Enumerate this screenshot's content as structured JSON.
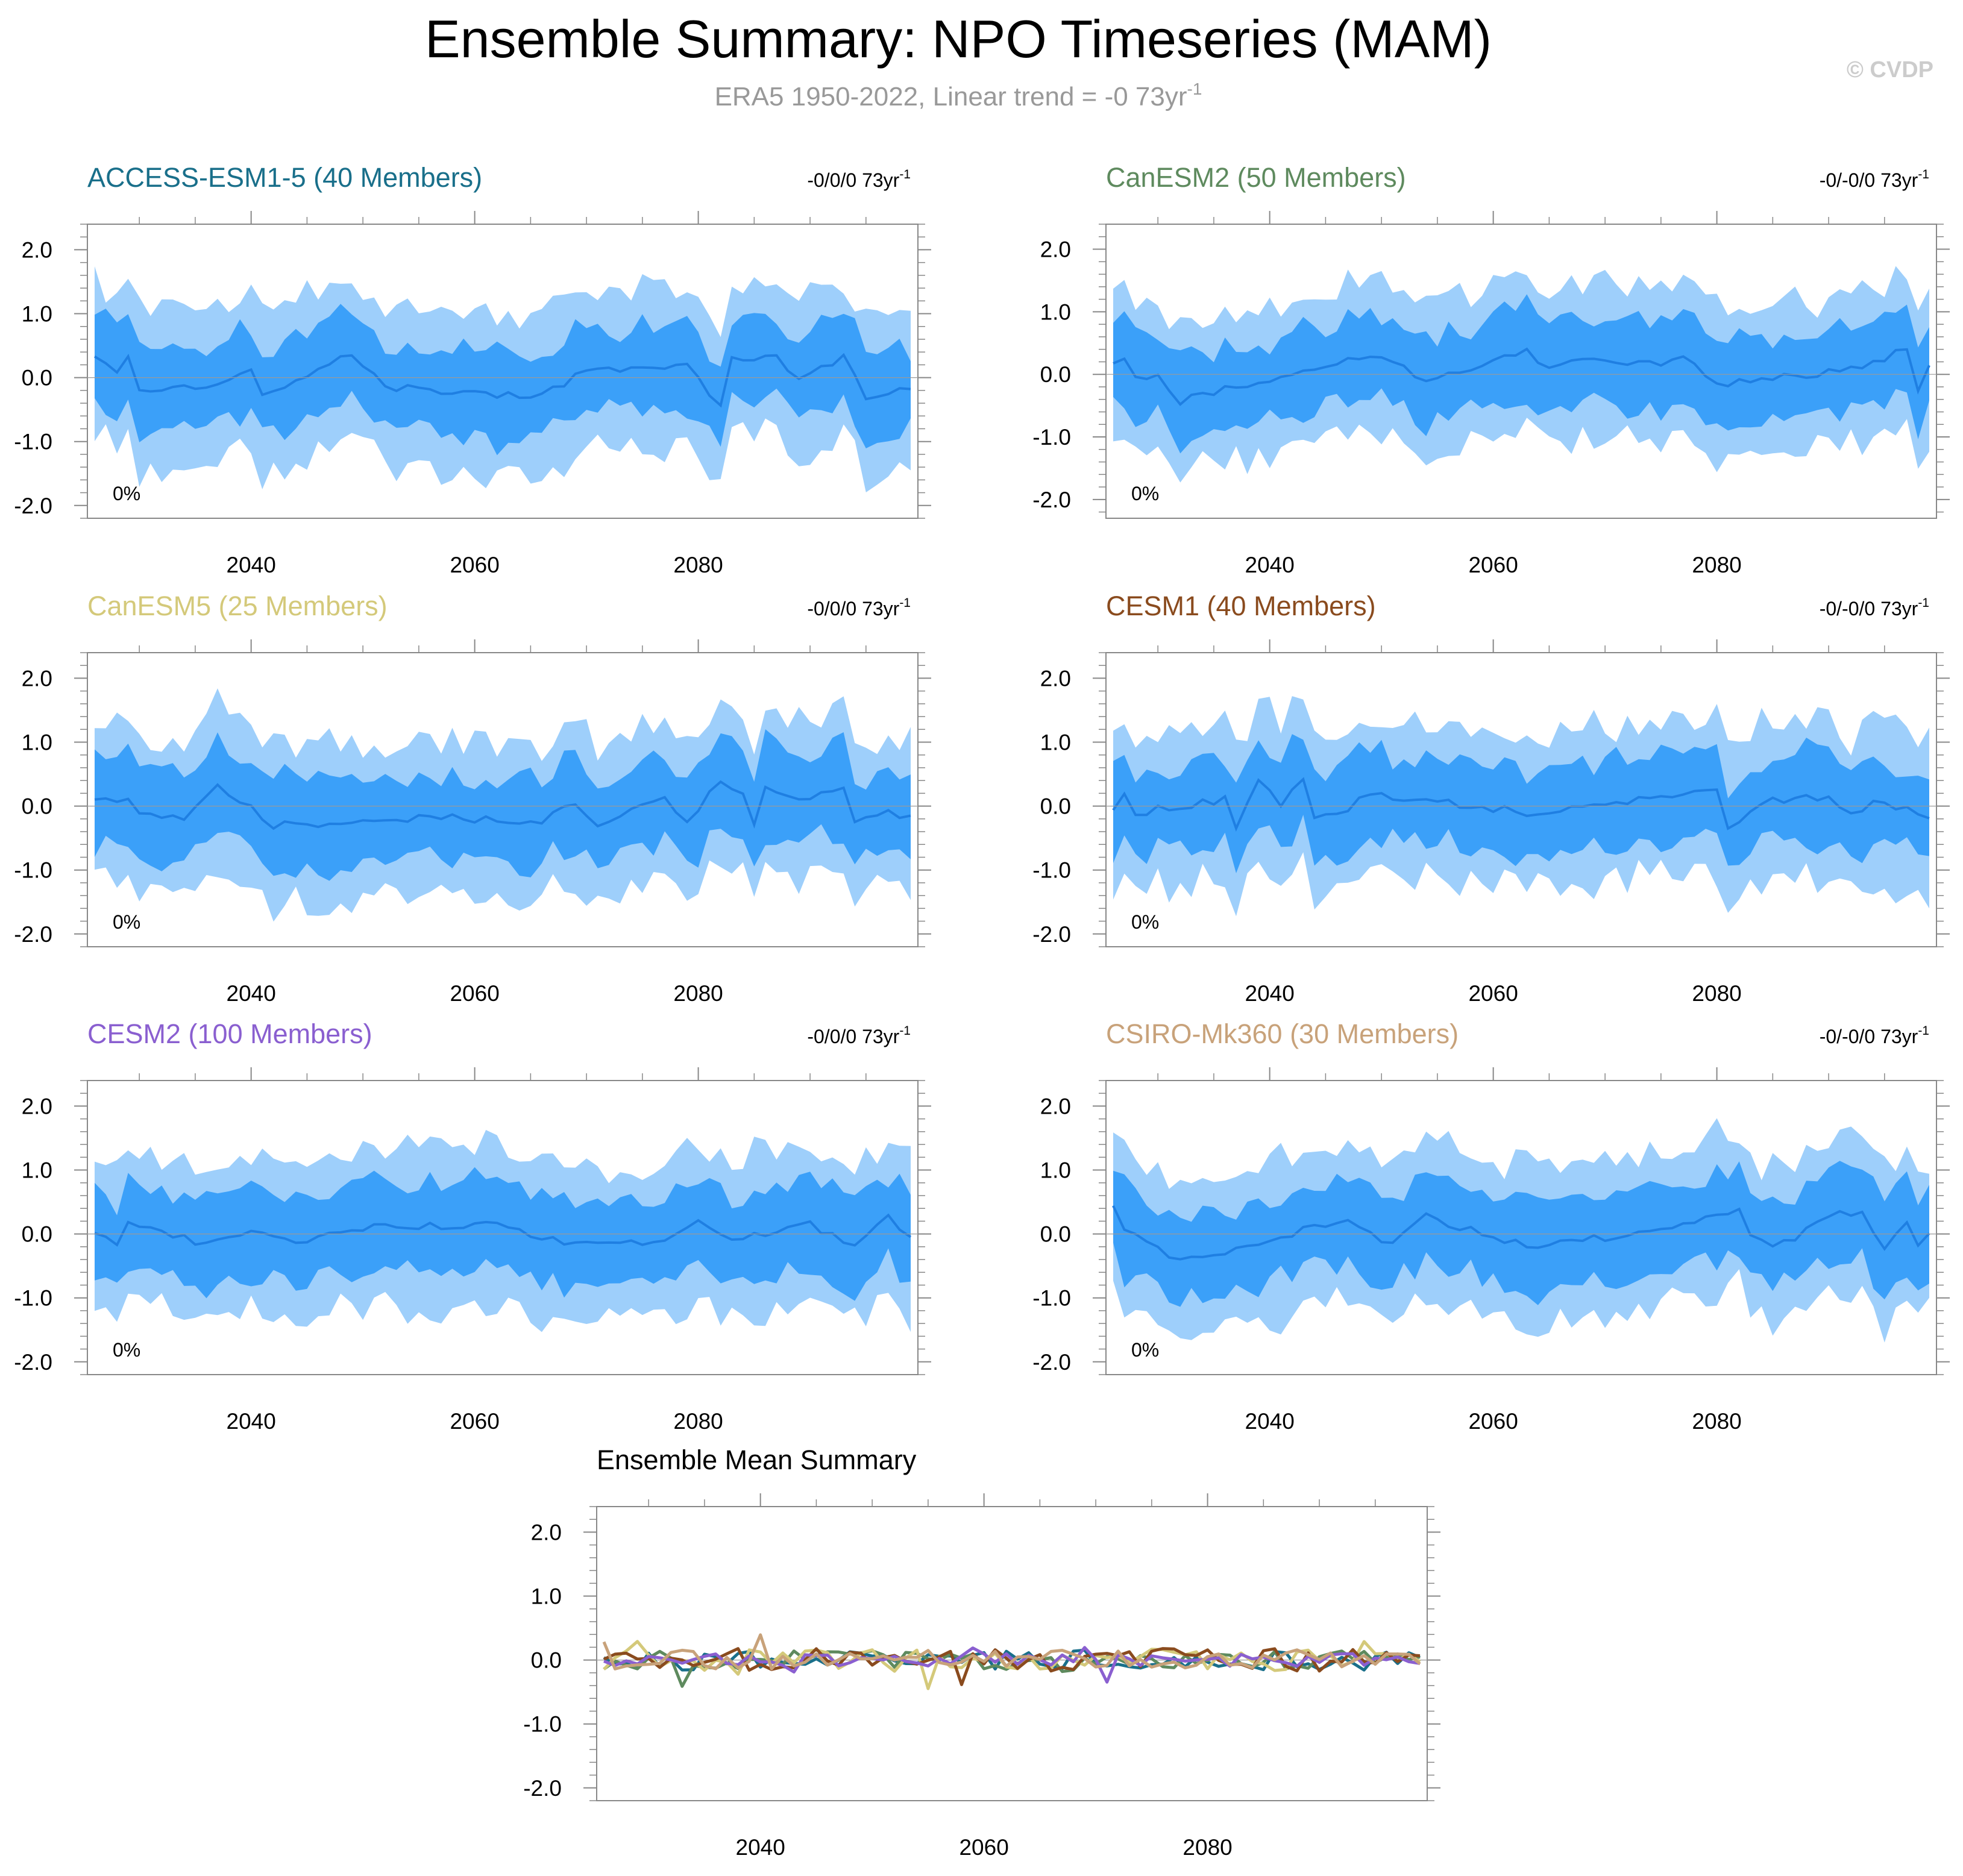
{
  "title": "Ensemble Summary: NPO Timeseries (MAM)",
  "subtitle": {
    "text": "ERA5 1950-2022, Linear trend = -0 73yr",
    "superscript": "-1"
  },
  "watermark": "© CVDP",
  "colors": {
    "outer_band": "#9ecffb",
    "inner_band": "#3ba0f9",
    "mean_line": "#1f7fe2",
    "subtitle": "#999999",
    "watermark": "#cccccc"
  },
  "chart_data": [
    {
      "type": "area",
      "title": "ACCESS-ESM1-5 (40 Members)",
      "title_color": "#196f8a",
      "trend_label": "-0/0/0 73yr",
      "trend_superscript": "-1",
      "percent_label": "0%",
      "xlim": [
        2026,
        2099
      ],
      "ylim": [
        -2.2,
        2.4
      ],
      "xticks": [
        2040,
        2060,
        2080
      ],
      "xtick_labels": [
        "2040",
        "2060",
        "2080"
      ],
      "yticks": [
        2.0,
        1.0,
        0.0,
        -1.0,
        -2.0
      ],
      "ytick_labels": [
        "2.0",
        "1.0",
        "0.0",
        "-1.0",
        "-2.0"
      ],
      "seed": 11,
      "mean_anchors": [
        [
          2026,
          0.28
        ],
        [
          2028,
          0.1
        ],
        [
          2029,
          0.32
        ],
        [
          2030,
          -0.22
        ],
        [
          2037,
          -0.12
        ],
        [
          2040,
          0.15
        ],
        [
          2041,
          -0.32
        ],
        [
          2045,
          0.05
        ],
        [
          2049,
          0.38
        ],
        [
          2052,
          -0.15
        ],
        [
          2066,
          -0.3
        ],
        [
          2070,
          0.12
        ],
        [
          2079,
          0.18
        ],
        [
          2082,
          -0.48
        ],
        [
          2083,
          0.32
        ],
        [
          2087,
          0.3
        ],
        [
          2089,
          -0.05
        ],
        [
          2093,
          0.35
        ],
        [
          2095,
          -0.28
        ],
        [
          2099,
          -0.18
        ]
      ]
    },
    {
      "type": "area",
      "title": "CanESM2 (50 Members)",
      "title_color": "#5e8a5e",
      "trend_label": "-0/-0/0 73yr",
      "trend_superscript": "-1",
      "percent_label": "0%",
      "xlim": [
        2026,
        2099
      ],
      "ylim": [
        -2.3,
        2.4
      ],
      "xticks": [
        2040,
        2060,
        2080
      ],
      "xtick_labels": [
        "2040",
        "2060",
        "2080"
      ],
      "yticks": [
        2.0,
        1.0,
        0.0,
        -1.0,
        -2.0
      ],
      "ytick_labels": [
        "2.0",
        "1.0",
        "0.0",
        "-1.0",
        "-2.0"
      ],
      "seed": 23,
      "mean_anchors": [
        [
          2026,
          0.15
        ],
        [
          2027,
          0.28
        ],
        [
          2028,
          -0.05
        ],
        [
          2030,
          0.0
        ],
        [
          2032,
          -0.42
        ],
        [
          2049,
          0.3
        ],
        [
          2052,
          0.15
        ],
        [
          2054,
          -0.12
        ],
        [
          2063,
          0.4
        ],
        [
          2065,
          0.08
        ],
        [
          2067,
          0.25
        ],
        [
          2075,
          0.15
        ],
        [
          2077,
          0.28
        ],
        [
          2080,
          -0.15
        ],
        [
          2093,
          0.08
        ],
        [
          2097,
          0.42
        ],
        [
          2098,
          -0.3
        ],
        [
          2099,
          0.2
        ]
      ]
    },
    {
      "type": "area",
      "title": "CanESM5 (25 Members)",
      "title_color": "#d4c97a",
      "trend_label": "-0/0/0 73yr",
      "trend_superscript": "-1",
      "percent_label": "0%",
      "xlim": [
        2026,
        2099
      ],
      "ylim": [
        -2.2,
        2.4
      ],
      "xticks": [
        2040,
        2060,
        2080
      ],
      "xtick_labels": [
        "2040",
        "2060",
        "2080"
      ],
      "yticks": [
        2.0,
        1.0,
        0.0,
        -1.0,
        -2.0
      ],
      "ytick_labels": [
        "2.0",
        "1.0",
        "0.0",
        "-1.0",
        "-2.0"
      ],
      "seed": 37,
      "mean_anchors": [
        [
          2026,
          0.05
        ],
        [
          2027,
          0.15
        ],
        [
          2029,
          0.08
        ],
        [
          2030,
          -0.1
        ],
        [
          2034,
          -0.2
        ],
        [
          2037,
          0.35
        ],
        [
          2042,
          -0.3
        ],
        [
          2057,
          -0.18
        ],
        [
          2066,
          -0.25
        ],
        [
          2069,
          0.05
        ],
        [
          2071,
          -0.28
        ],
        [
          2077,
          0.15
        ],
        [
          2079,
          -0.3
        ],
        [
          2081,
          0.25
        ],
        [
          2082,
          0.4
        ],
        [
          2084,
          0.25
        ],
        [
          2085,
          -0.28
        ],
        [
          2086,
          0.28
        ],
        [
          2090,
          0.1
        ],
        [
          2093,
          0.32
        ],
        [
          2094,
          -0.25
        ],
        [
          2097,
          -0.1
        ],
        [
          2099,
          -0.2
        ]
      ]
    },
    {
      "type": "area",
      "title": "CESM1 (40 Members)",
      "title_color": "#8a4b1e",
      "trend_label": "-0/-0/0 73yr",
      "trend_superscript": "-1",
      "percent_label": "0%",
      "xlim": [
        2026,
        2099
      ],
      "ylim": [
        -2.2,
        2.4
      ],
      "xticks": [
        2040,
        2060,
        2080
      ],
      "xtick_labels": [
        "2040",
        "2060",
        "2080"
      ],
      "yticks": [
        2.0,
        1.0,
        0.0,
        -1.0,
        -2.0
      ],
      "ytick_labels": [
        "2.0",
        "1.0",
        "0.0",
        "-1.0",
        "-2.0"
      ],
      "seed": 41,
      "mean_anchors": [
        [
          2026,
          -0.1
        ],
        [
          2027,
          0.25
        ],
        [
          2028,
          -0.18
        ],
        [
          2030,
          -0.05
        ],
        [
          2036,
          0.1
        ],
        [
          2037,
          -0.38
        ],
        [
          2039,
          0.42
        ],
        [
          2041,
          0.05
        ],
        [
          2043,
          0.45
        ],
        [
          2044,
          -0.2
        ],
        [
          2046,
          -0.15
        ],
        [
          2049,
          0.2
        ],
        [
          2063,
          -0.1
        ],
        [
          2080,
          0.25
        ],
        [
          2081,
          -0.35
        ],
        [
          2085,
          0.1
        ],
        [
          2090,
          0.12
        ],
        [
          2092,
          -0.15
        ],
        [
          2094,
          0.1
        ],
        [
          2099,
          -0.15
        ]
      ]
    },
    {
      "type": "area",
      "title": "CESM2 (100 Members)",
      "title_color": "#8a5fd0",
      "trend_label": "-0/0/0 73yr",
      "trend_superscript": "-1",
      "percent_label": "0%",
      "xlim": [
        2026,
        2099
      ],
      "ylim": [
        -2.2,
        2.4
      ],
      "xticks": [
        2040,
        2060,
        2080
      ],
      "xtick_labels": [
        "2040",
        "2060",
        "2080"
      ],
      "yticks": [
        2.0,
        1.0,
        0.0,
        -1.0,
        -2.0
      ],
      "ytick_labels": [
        "2.0",
        "1.0",
        "0.0",
        "-1.0",
        "-2.0"
      ],
      "seed": 53,
      "mean_anchors": [
        [
          2026,
          0.0
        ],
        [
          2028,
          -0.12
        ],
        [
          2029,
          0.15
        ],
        [
          2036,
          -0.15
        ],
        [
          2040,
          0.05
        ],
        [
          2044,
          -0.12
        ],
        [
          2050,
          0.1
        ],
        [
          2062,
          0.15
        ],
        [
          2066,
          -0.1
        ],
        [
          2077,
          -0.15
        ],
        [
          2080,
          0.25
        ],
        [
          2083,
          -0.1
        ],
        [
          2090,
          0.15
        ],
        [
          2094,
          -0.2
        ],
        [
          2097,
          0.25
        ],
        [
          2099,
          -0.05
        ]
      ]
    },
    {
      "type": "area",
      "title": "CSIRO-Mk360 (30 Members)",
      "title_color": "#c8a27a",
      "trend_label": "-0/-0/0 73yr",
      "trend_superscript": "-1",
      "percent_label": "0%",
      "xlim": [
        2026,
        2099
      ],
      "ylim": [
        -2.2,
        2.4
      ],
      "xticks": [
        2040,
        2060,
        2080
      ],
      "xtick_labels": [
        "2040",
        "2060",
        "2080"
      ],
      "yticks": [
        2.0,
        1.0,
        0.0,
        -1.0,
        -2.0
      ],
      "ytick_labels": [
        "2.0",
        "1.0",
        "0.0",
        "-1.0",
        "-2.0"
      ],
      "seed": 67,
      "mean_anchors": [
        [
          2026,
          0.4
        ],
        [
          2027,
          0.05
        ],
        [
          2030,
          -0.2
        ],
        [
          2032,
          -0.45
        ],
        [
          2047,
          0.25
        ],
        [
          2051,
          -0.18
        ],
        [
          2054,
          0.28
        ],
        [
          2058,
          0.05
        ],
        [
          2063,
          -0.18
        ],
        [
          2073,
          0.0
        ],
        [
          2082,
          0.35
        ],
        [
          2083,
          0.0
        ],
        [
          2085,
          -0.25
        ],
        [
          2091,
          0.35
        ],
        [
          2093,
          0.3
        ],
        [
          2095,
          -0.2
        ],
        [
          2097,
          0.2
        ],
        [
          2098,
          -0.2
        ],
        [
          2099,
          0.0
        ]
      ]
    },
    {
      "type": "line",
      "title": "Ensemble Mean Summary",
      "xlim": [
        2026,
        2099
      ],
      "ylim": [
        -2.2,
        2.4
      ],
      "xticks": [
        2040,
        2060,
        2080
      ],
      "xtick_labels": [
        "2040",
        "2060",
        "2080"
      ],
      "yticks": [
        2.0,
        1.0,
        0.0,
        -1.0,
        -2.0
      ],
      "ytick_labels": [
        "2.0",
        "1.0",
        "0.0",
        "-1.0",
        "-2.0"
      ],
      "series": [
        {
          "name": "ACCESS-ESM1-5",
          "color": "#196f8a",
          "seed": 101,
          "amp": 0.16
        },
        {
          "name": "CanESM2",
          "color": "#5e8a5e",
          "seed": 103,
          "amp": 0.16
        },
        {
          "name": "CanESM5",
          "color": "#d4c97a",
          "seed": 107,
          "amp": 0.18
        },
        {
          "name": "CESM1",
          "color": "#8a4b1e",
          "seed": 109,
          "amp": 0.18
        },
        {
          "name": "CESM2",
          "color": "#8a5fd0",
          "seed": 113,
          "amp": 0.1
        },
        {
          "name": "CSIRO-Mk360",
          "color": "#c8a27a",
          "seed": 127,
          "amp": 0.16
        }
      ]
    }
  ]
}
